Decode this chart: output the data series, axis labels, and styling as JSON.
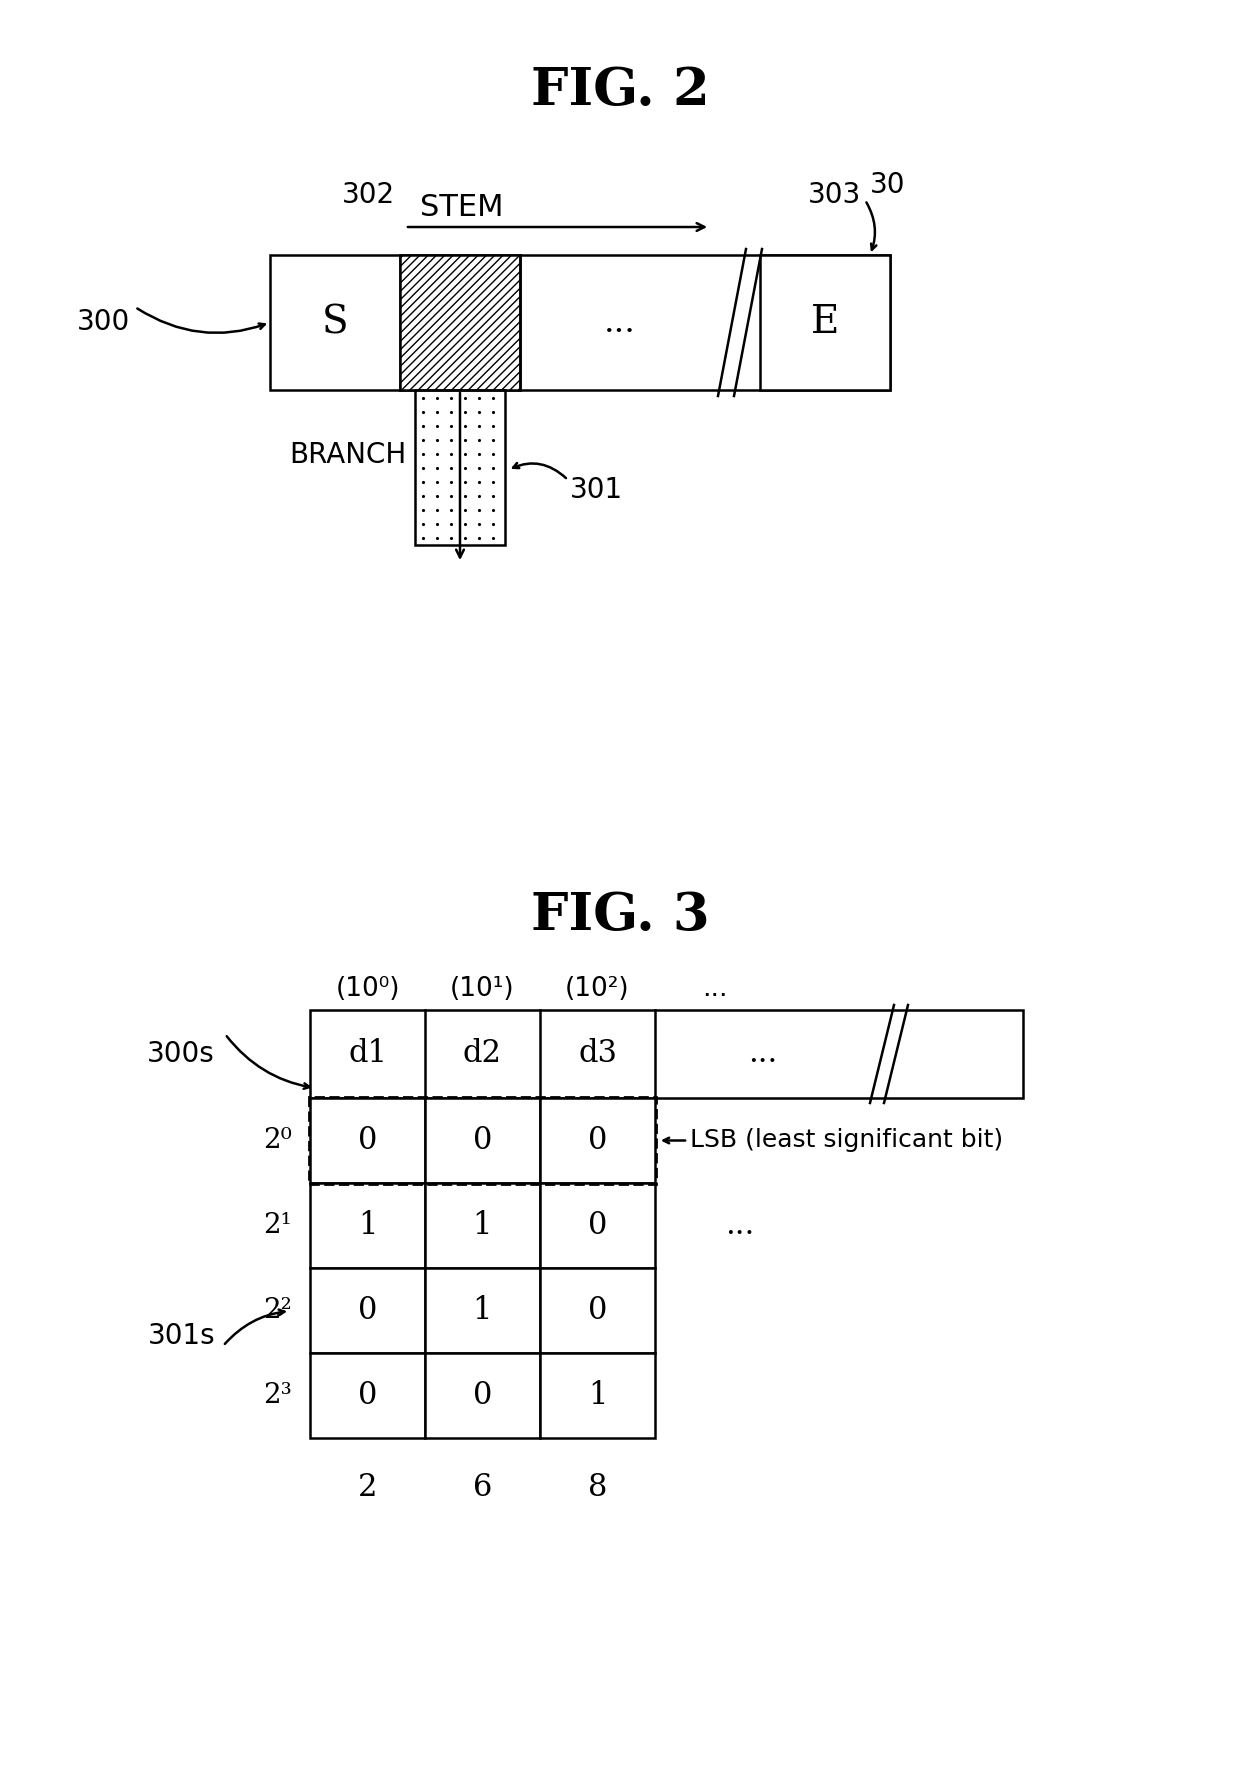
{
  "fig_title1": "FIG. 2",
  "fig_title2": "FIG. 3",
  "background_color": "#ffffff",
  "label_30": "30",
  "label_300": "300",
  "label_301": "301",
  "label_302": "302",
  "label_303": "303",
  "label_stem": "STEM",
  "label_branch": "BRANCH",
  "label_S": "S",
  "label_E": "E",
  "label_dots_main": "...",
  "label_300s": "300s",
  "label_301s": "301s",
  "label_d1": "d1",
  "label_d2": "d2",
  "label_d3": "d3",
  "label_dots_row": "...",
  "label_lsb": "LSB (least significant bit)",
  "powers_col": [
    "(10⁰)",
    "(10¹)",
    "(10²)",
    "..."
  ],
  "powers_row": [
    "2⁰",
    "2¹",
    "2²",
    "2³"
  ],
  "grid_values": [
    [
      0,
      0,
      0
    ],
    [
      1,
      1,
      0
    ],
    [
      0,
      1,
      0
    ],
    [
      0,
      0,
      1
    ]
  ],
  "bottom_labels": [
    "2",
    "6",
    "8"
  ]
}
